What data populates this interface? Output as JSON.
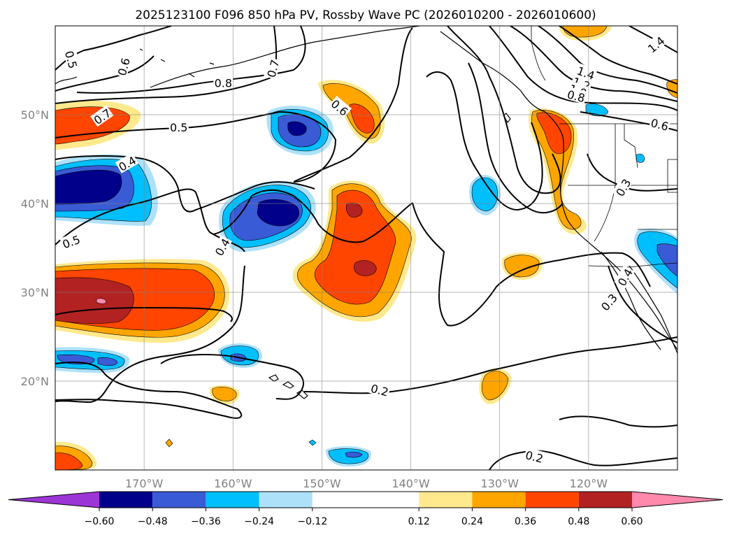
{
  "figure": {
    "title": "2025123100 F096 850 hPa PV, Rossby Wave PC (2026010200 - 2026010600)"
  },
  "map": {
    "lon_range": [
      -180,
      -110
    ],
    "lat_range": [
      10,
      60
    ],
    "lon_ticks": [
      {
        "value": -170,
        "label": "170°W"
      },
      {
        "value": -160,
        "label": "160°W"
      },
      {
        "value": -150,
        "label": "150°W"
      },
      {
        "value": -140,
        "label": "140°W"
      },
      {
        "value": -130,
        "label": "130°W"
      },
      {
        "value": -120,
        "label": "120°W"
      }
    ],
    "lat_ticks": [
      {
        "value": 20,
        "label": "20°N"
      },
      {
        "value": 30,
        "label": "30°N"
      },
      {
        "value": 40,
        "label": "40°N"
      },
      {
        "value": 50,
        "label": "50°N"
      }
    ],
    "gridlines": true,
    "contour_labels": [
      {
        "text": "0.5",
        "lon": -178.2,
        "lat": 56.2,
        "rot": 75
      },
      {
        "text": "0.6",
        "lon": -172.3,
        "lat": 55.4,
        "rot": -75
      },
      {
        "text": "0.7",
        "lon": -155.5,
        "lat": 55.2,
        "rot": -75
      },
      {
        "text": "0.8",
        "lon": -161.1,
        "lat": 53.6,
        "rot": 0
      },
      {
        "text": "0.6",
        "lon": -148.0,
        "lat": 50.8,
        "rot": 40
      },
      {
        "text": "0.7",
        "lon": -174.7,
        "lat": 49.8,
        "rot": -35
      },
      {
        "text": "0.5",
        "lon": -166.1,
        "lat": 48.6,
        "rot": 0
      },
      {
        "text": "0.4",
        "lon": -171.9,
        "lat": 44.5,
        "rot": -30
      },
      {
        "text": "0.5",
        "lon": -178.2,
        "lat": 35.7,
        "rot": -20
      },
      {
        "text": "0.4",
        "lon": -161.2,
        "lat": 35.1,
        "rot": -60
      },
      {
        "text": "1.4",
        "lon": -120.3,
        "lat": 54.7,
        "rot": 20
      },
      {
        "text": "1.2",
        "lon": -120.8,
        "lat": 53.5,
        "rot": 20
      },
      {
        "text": "1.0",
        "lon": -121.2,
        "lat": 52.7,
        "rot": 20
      },
      {
        "text": "0.8",
        "lon": -121.4,
        "lat": 52.1,
        "rot": 15
      },
      {
        "text": "1.4",
        "lon": -112.4,
        "lat": 57.9,
        "rot": -40
      },
      {
        "text": "0.6",
        "lon": -112.0,
        "lat": 48.9,
        "rot": 15
      },
      {
        "text": "0.3",
        "lon": -116.1,
        "lat": 41.8,
        "rot": -60
      },
      {
        "text": "0.4",
        "lon": -115.9,
        "lat": 31.7,
        "rot": -60
      },
      {
        "text": "0.3",
        "lon": -117.7,
        "lat": 28.9,
        "rot": -50
      },
      {
        "text": "0.2",
        "lon": -143.5,
        "lat": 19.0,
        "rot": 15
      },
      {
        "text": "0.2",
        "lon": -126.1,
        "lat": 11.5,
        "rot": 15
      }
    ]
  },
  "colorbar": {
    "levels": [
      -0.72,
      -0.6,
      -0.48,
      -0.36,
      -0.24,
      -0.12,
      0.12,
      0.24,
      0.36,
      0.48,
      0.6,
      0.72
    ],
    "colors": [
      "#9c35d6",
      "#00008b",
      "#3a5bd6",
      "#00bfff",
      "#ade1fa",
      "#ffffff",
      "#ffe98c",
      "#ffa500",
      "#ff4500",
      "#b22222",
      "#ff88ad"
    ],
    "tick_labels": [
      "−0.60",
      "−0.48",
      "−0.36",
      "−0.24",
      "−0.12",
      "0.12",
      "0.24",
      "0.36",
      "0.48",
      "0.60"
    ]
  }
}
